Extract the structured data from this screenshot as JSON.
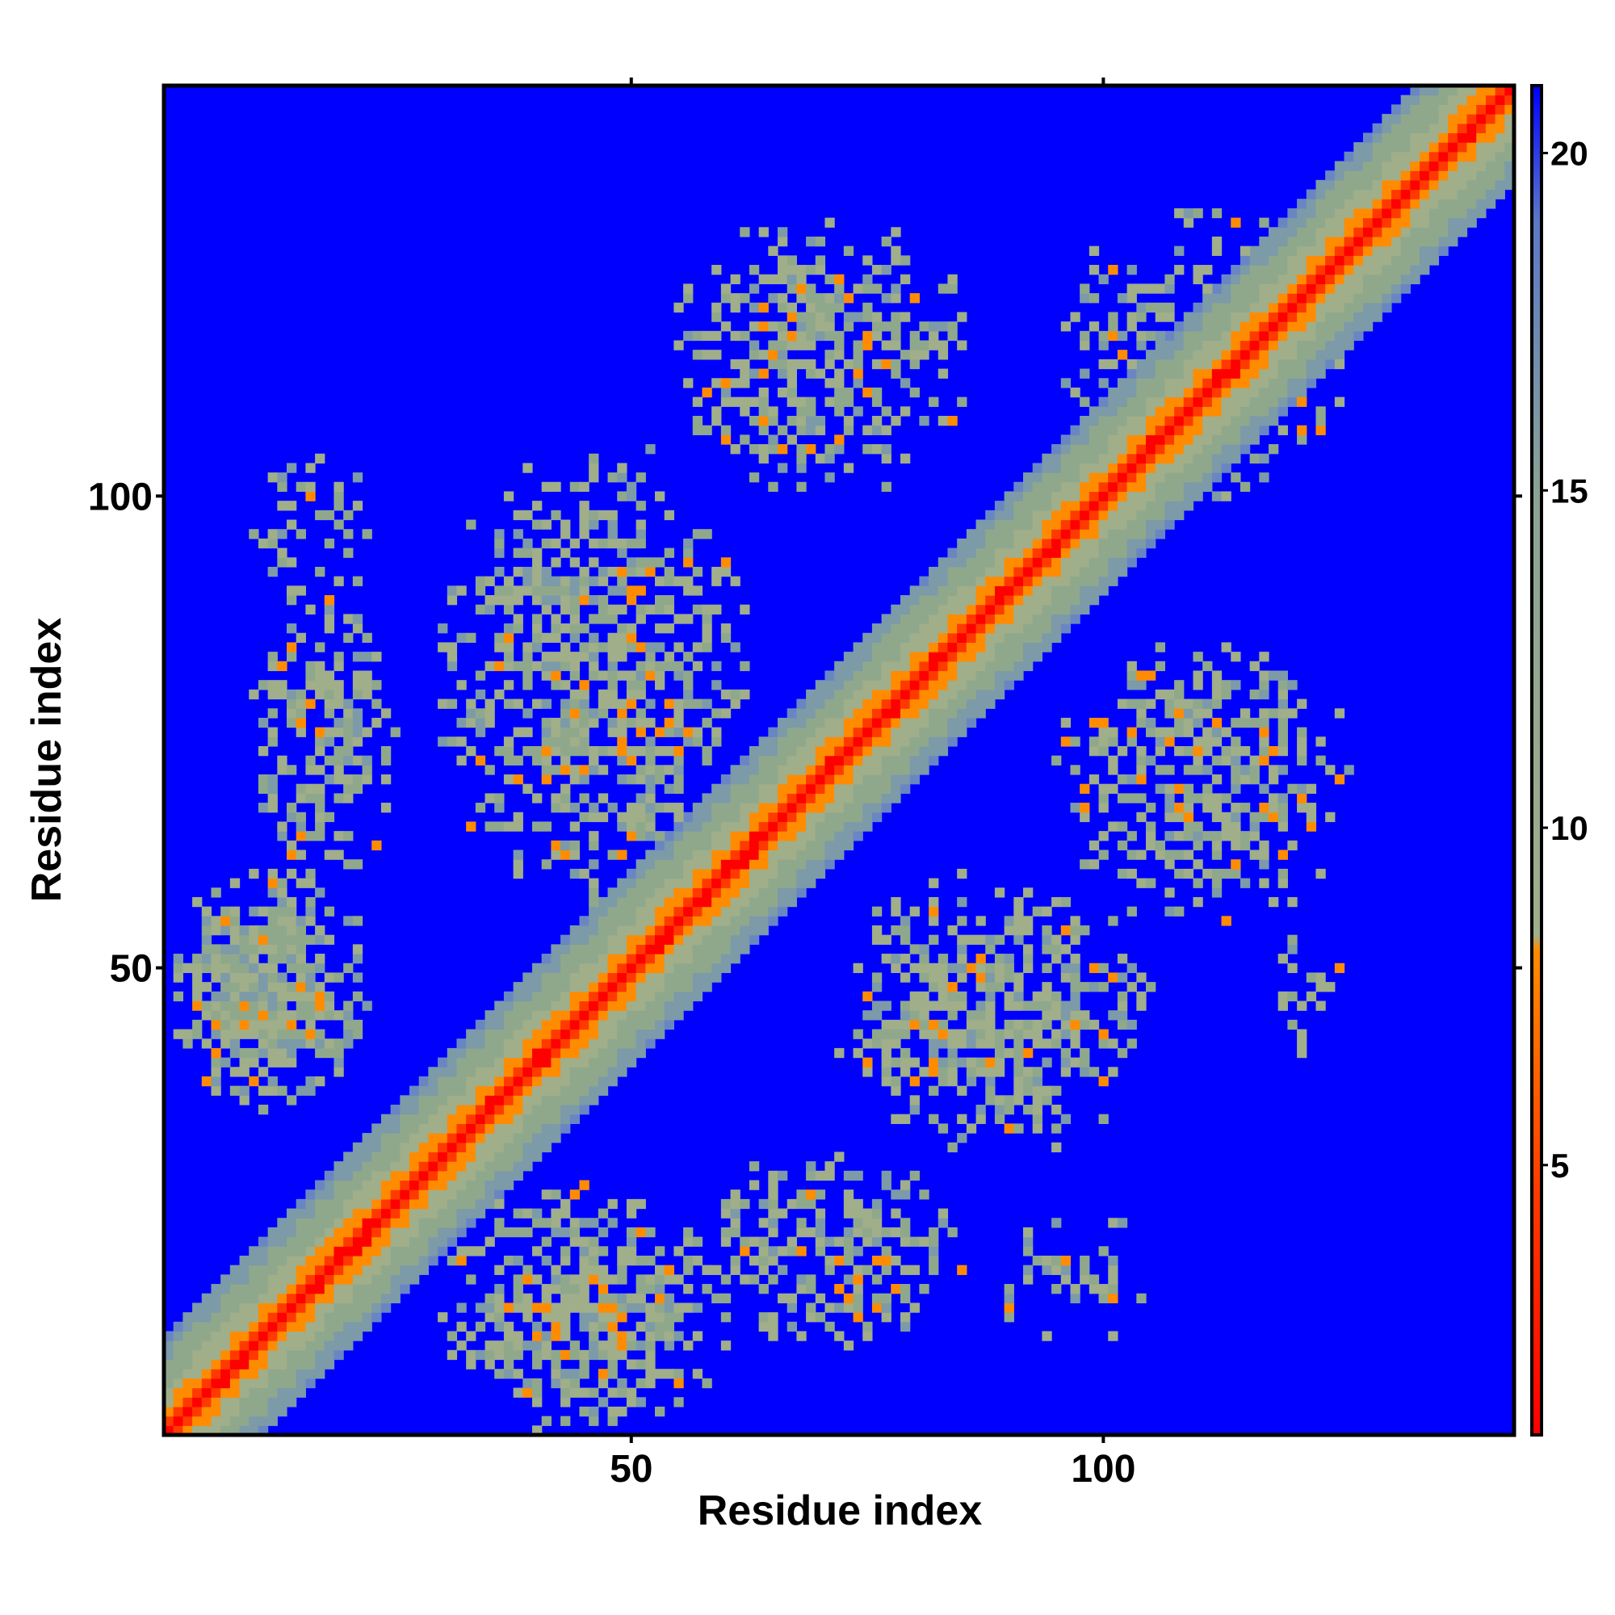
{
  "chart_data": {
    "type": "heatmap",
    "title": "",
    "xlabel": "Residue index",
    "ylabel": "Residue index",
    "n_residues": 143,
    "xlim": [
      1,
      143
    ],
    "ylim": [
      1,
      143
    ],
    "x_ticks": [
      50,
      100
    ],
    "y_ticks": [
      50,
      100
    ],
    "colorbar": {
      "range": [
        1,
        21
      ],
      "ticks": [
        5,
        10,
        15,
        20
      ],
      "colors": {
        "near": "#ff0000",
        "mid": "#ff8c00",
        "far": "#8fa88c",
        "background": "#0000ff"
      }
    },
    "contact_regions": [
      {
        "x": [
          1,
          22
        ],
        "y": [
          35,
          60
        ],
        "density": 0.85
      },
      {
        "x": [
          10,
          25
        ],
        "y": [
          60,
          90
        ],
        "density": 0.55
      },
      {
        "x": [
          10,
          22
        ],
        "y": [
          88,
          105
        ],
        "density": 0.35
      },
      {
        "x": [
          30,
          62
        ],
        "y": [
          57,
          105
        ],
        "density": 0.6
      },
      {
        "x": [
          55,
          85
        ],
        "y": [
          100,
          130
        ],
        "density": 0.55
      },
      {
        "x": [
          30,
          60
        ],
        "y": [
          1,
          27
        ],
        "density": 0.7
      },
      {
        "x": [
          57,
          85
        ],
        "y": [
          10,
          30
        ],
        "density": 0.55
      },
      {
        "x": [
          72,
          105
        ],
        "y": [
          30,
          60
        ],
        "density": 0.6
      },
      {
        "x": [
          95,
          127
        ],
        "y": [
          55,
          85
        ],
        "density": 0.55
      },
      {
        "x": [
          95,
          125
        ],
        "y": [
          100,
          130
        ],
        "density": 0.45
      },
      {
        "x": [
          88,
          105
        ],
        "y": [
          10,
          25
        ],
        "density": 0.25
      },
      {
        "x": [
          118,
          125
        ],
        "y": [
          40,
          55
        ],
        "density": 0.2
      }
    ]
  }
}
